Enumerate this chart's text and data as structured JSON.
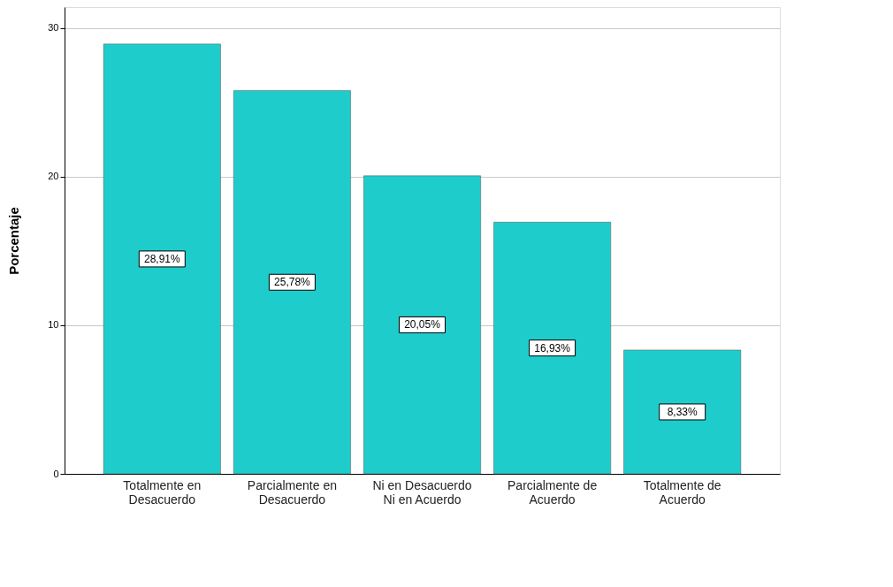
{
  "chart_data": {
    "type": "bar",
    "ylabel": "Porcentaje",
    "categories": [
      "Totalmente en Desacuerdo",
      "Parcialmente en Desacuerdo",
      "Ni en Desacuerdo Ni en Acuerdo",
      "Parcialmente de Acuerdo",
      "Totalmente de Acuerdo"
    ],
    "values": [
      28.91,
      25.78,
      20.05,
      16.93,
      8.33
    ],
    "value_labels": [
      "28,91%",
      "25,78%",
      "20,05%",
      "16,93%",
      "8,33%"
    ],
    "color": "#1fcccc",
    "ylim": [
      0,
      31.4
    ],
    "yticks": [
      0,
      10,
      20,
      30
    ],
    "grid": "y"
  }
}
